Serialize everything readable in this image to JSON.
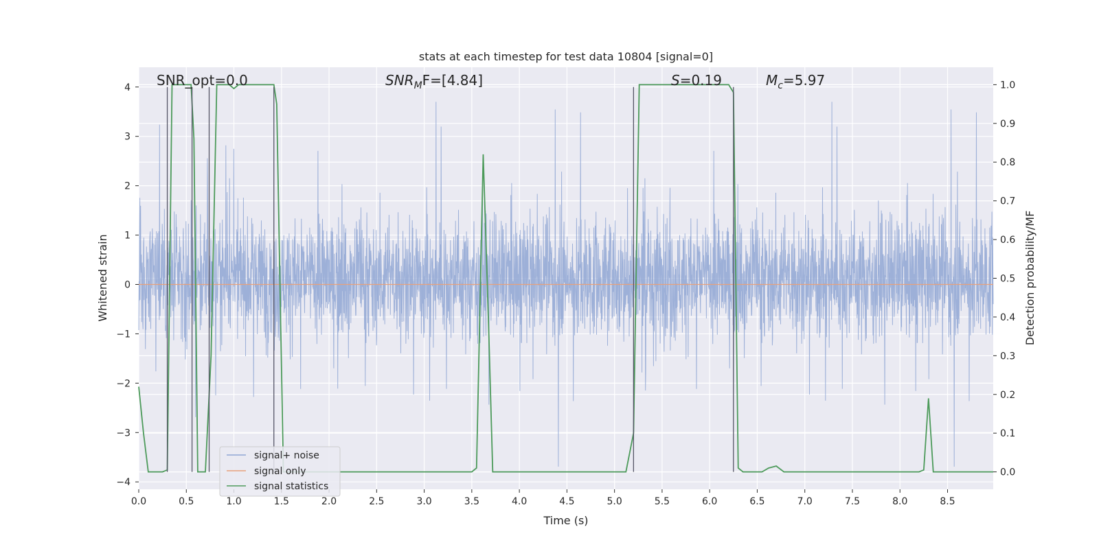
{
  "chart_data": {
    "type": "line",
    "title": "stats at each timestep for test data 10804 [signal=0]",
    "xlabel": "Time (s)",
    "ylabel_left": "Whitened strain",
    "ylabel_right": "Detection probability/MF",
    "xlim": [
      0.0,
      8.98
    ],
    "ylim_left": [
      -4.15,
      4.4
    ],
    "ylim_right": [
      -0.045,
      1.045
    ],
    "x_ticks": [
      "0.0",
      "0.5",
      "1.0",
      "1.5",
      "2.0",
      "2.5",
      "3.0",
      "3.5",
      "4.0",
      "4.5",
      "5.0",
      "5.5",
      "6.0",
      "6.5",
      "7.0",
      "7.5",
      "8.0",
      "8.5"
    ],
    "y_left_ticks": [
      "4",
      "3",
      "2",
      "1",
      "0",
      "−1",
      "−2",
      "−3",
      "−4"
    ],
    "y_right_ticks": [
      "1.0",
      "0.9",
      "0.8",
      "0.7",
      "0.6",
      "0.5",
      "0.4",
      "0.3",
      "0.2",
      "0.1",
      "0.0"
    ],
    "grid": true,
    "legend_position": "lower-left",
    "annotations": {
      "snr_opt": "SNR_opt=0.0",
      "snr_mf_main": "SNR",
      "snr_mf_sub": "M",
      "snr_mf_tail": "F=[4.84]",
      "s_label": "S",
      "s_value": "=0.19",
      "mc_main": "M",
      "mc_sub": "c",
      "mc_value": "=5.97"
    },
    "series": [
      {
        "name": "signal+ noise",
        "color": "#8fa6d4",
        "description_values": "whitened noise trace, dense band roughly between -1.5 and 1.7 with spikes reaching about 3.7 and -3.7"
      },
      {
        "name": "signal only",
        "color": "#e8a07a",
        "x": [
          0.0,
          8.98
        ],
        "y": [
          0.0,
          0.0
        ]
      },
      {
        "name": "signal statistics",
        "color": "#4c9a5a",
        "x": [
          0.0,
          0.05,
          0.1,
          0.25,
          0.3,
          0.35,
          0.55,
          0.58,
          0.62,
          0.68,
          0.7,
          0.76,
          0.82,
          0.95,
          1.0,
          1.05,
          1.2,
          1.42,
          1.45,
          1.52,
          1.6,
          3.5,
          3.55,
          3.62,
          3.68,
          3.72,
          3.8,
          5.12,
          5.2,
          5.26,
          5.3,
          6.2,
          6.25,
          6.3,
          6.35,
          6.55,
          6.62,
          6.7,
          6.78,
          6.85,
          8.2,
          8.25,
          8.3,
          8.35,
          8.4,
          8.98
        ],
        "y": [
          0.22,
          0.1,
          0.0,
          0.0,
          0.005,
          1.0,
          1.0,
          0.86,
          0.0,
          0.0,
          0.0,
          0.3,
          1.0,
          1.0,
          0.99,
          1.0,
          1.0,
          1.0,
          0.95,
          0.0,
          0.0,
          0.0,
          0.01,
          0.82,
          0.35,
          0.0,
          0.0,
          0.0,
          0.1,
          1.0,
          1.0,
          1.0,
          0.98,
          0.01,
          0.0,
          0.0,
          0.01,
          0.015,
          0.0,
          0.0,
          0.0,
          0.005,
          0.19,
          0.0,
          0.0,
          0.0
        ]
      }
    ],
    "vertical_markers_x": [
      0.3,
      0.56,
      0.74,
      1.42,
      5.2,
      6.25
    ]
  }
}
